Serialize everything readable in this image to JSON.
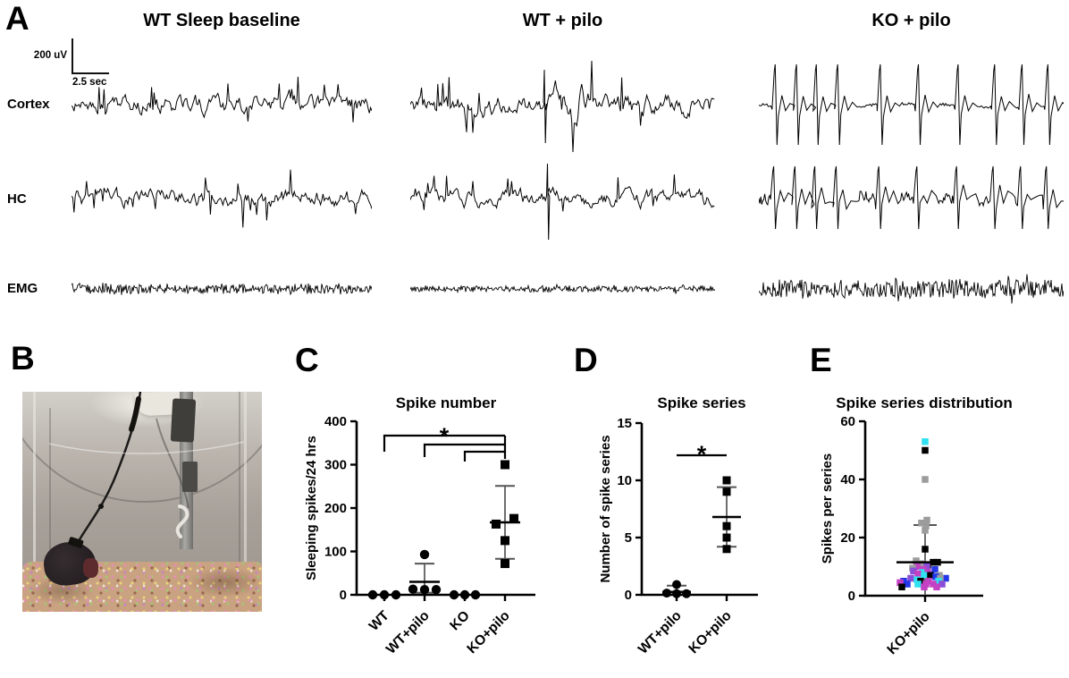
{
  "figure": {
    "panels": {
      "A": {
        "label": "A",
        "column_titles": [
          "WT Sleep baseline",
          "WT + pilo",
          "KO + pilo"
        ],
        "row_labels": [
          "Cortex",
          "HC",
          "EMG"
        ],
        "scalebar": {
          "voltage": "200 uV",
          "time": "2.5 sec"
        },
        "traces": [
          {
            "name": "wt-baseline-cortex",
            "row": 0,
            "col": 0,
            "kind": "eeg",
            "amp": 13,
            "spike_prob": 0.05,
            "seed": 11
          },
          {
            "name": "wt-pilo-cortex",
            "row": 0,
            "col": 1,
            "kind": "eeg",
            "amp": 15,
            "spike_prob": 0.06,
            "seed": 21,
            "event": {
              "pos": 0.44,
              "up": 40,
              "down": 42
            },
            "burst": {
              "from": 0.46,
              "to": 0.6,
              "gain": 1.8
            }
          },
          {
            "name": "ko-pilo-cortex",
            "row": 0,
            "col": 2,
            "kind": "swd",
            "noise": 1.6,
            "up": 46,
            "down": 44,
            "events": [
              0.055,
              0.125,
              0.19,
              0.26,
              0.4,
              0.525,
              0.655,
              0.775,
              0.865,
              0.95
            ],
            "seed": 31
          },
          {
            "name": "wt-baseline-hc",
            "row": 1,
            "col": 0,
            "kind": "eeg",
            "amp": 12,
            "spike_prob": 0.07,
            "seed": 12
          },
          {
            "name": "wt-pilo-hc",
            "row": 1,
            "col": 1,
            "kind": "eeg",
            "amp": 11,
            "spike_prob": 0.05,
            "seed": 22,
            "event": {
              "pos": 0.45,
              "up": 39,
              "down": 46
            }
          },
          {
            "name": "ko-pilo-hc",
            "row": 1,
            "col": 2,
            "kind": "swd",
            "noise": 7,
            "up": 36,
            "down": 34,
            "events": [
              0.05,
              0.12,
              0.185,
              0.255,
              0.395,
              0.52,
              0.65,
              0.77,
              0.86,
              0.945
            ],
            "seed": 32
          },
          {
            "name": "wt-baseline-emg",
            "row": 2,
            "col": 0,
            "kind": "emg",
            "amp": 5,
            "seed": 13
          },
          {
            "name": "wt-pilo-emg",
            "row": 2,
            "col": 1,
            "kind": "emg",
            "amp": 3,
            "seed": 23
          },
          {
            "name": "ko-pilo-emg",
            "row": 2,
            "col": 2,
            "kind": "emg",
            "amp": 9,
            "seed": 33
          }
        ]
      },
      "B": {
        "label": "B",
        "photo_alt": "Mouse with EEG tether in recording chamber on multicolored bedding"
      },
      "C": {
        "label": "C"
      },
      "D": {
        "label": "D"
      },
      "E": {
        "label": "E"
      }
    }
  },
  "chart_data": [
    {
      "type": "scatter",
      "panel": "C",
      "title": "Spike number",
      "xlabel": "",
      "ylabel": "Sleeping spikes/24 hrs",
      "ylim": [
        0,
        400
      ],
      "yticks": [
        0,
        100,
        200,
        300,
        400
      ],
      "grid": false,
      "categories": [
        "WT",
        "WT+pilo",
        "KO",
        "KO+pilo"
      ],
      "series": [
        {
          "category": "WT",
          "marker": "circle",
          "points": [
            {
              "v": 0,
              "j": -13
            },
            {
              "v": 0,
              "j": 0
            },
            {
              "v": 0,
              "j": 13
            }
          ],
          "mean": null,
          "sd_low": null,
          "sd_high": null
        },
        {
          "category": "WT+pilo",
          "marker": "circle",
          "points": [
            {
              "v": 93,
              "j": 0
            },
            {
              "v": 13,
              "j": -13
            },
            {
              "v": 12,
              "j": 0
            },
            {
              "v": 12,
              "j": 13
            }
          ],
          "mean": 30,
          "sd_low": 5,
          "sd_high": 72
        },
        {
          "category": "KO",
          "marker": "circle",
          "points": [
            {
              "v": 0,
              "j": -12
            },
            {
              "v": 0,
              "j": 0
            },
            {
              "v": 0,
              "j": 12
            }
          ],
          "mean": null,
          "sd_low": null,
          "sd_high": null
        },
        {
          "category": "KO+pilo",
          "marker": "square",
          "points": [
            {
              "v": 300,
              "j": 0
            },
            {
              "v": 176,
              "j": 10
            },
            {
              "v": 163,
              "j": -10
            },
            {
              "v": 125,
              "j": 0
            },
            {
              "v": 72,
              "j": 0
            }
          ],
          "mean": 167,
          "sd_low": 83,
          "sd_high": 251
        }
      ],
      "significance": {
        "label": "*",
        "comparisons": [
          {
            "from": "WT",
            "to": "KO+pilo"
          },
          {
            "from": "WT+pilo",
            "to": "KO+pilo"
          },
          {
            "from": "KO",
            "to": "KO+pilo"
          }
        ]
      }
    },
    {
      "type": "scatter",
      "panel": "D",
      "title": "Spike series",
      "xlabel": "",
      "ylabel": "Number of spike series",
      "ylim": [
        0,
        15
      ],
      "yticks": [
        0,
        5,
        10,
        15
      ],
      "grid": false,
      "categories": [
        "WT+pilo",
        "KO+pilo"
      ],
      "series": [
        {
          "category": "WT+pilo",
          "marker": "circle",
          "points": [
            {
              "v": 0.9,
              "j": 0
            },
            {
              "v": 0.15,
              "j": -11
            },
            {
              "v": 0.1,
              "j": 0
            },
            {
              "v": 0.1,
              "j": 11
            }
          ],
          "mean": 0.25,
          "sd_low": 0,
          "sd_high": 0.8
        },
        {
          "category": "KO+pilo",
          "marker": "square",
          "points": [
            {
              "v": 10,
              "j": 0
            },
            {
              "v": 9,
              "j": 0
            },
            {
              "v": 6,
              "j": 0
            },
            {
              "v": 5,
              "j": 0
            },
            {
              "v": 4,
              "j": 0
            }
          ],
          "mean": 6.8,
          "sd_low": 4.2,
          "sd_high": 9.4
        }
      ],
      "significance": {
        "label": "*",
        "comparisons": [
          {
            "from": "WT+pilo",
            "to": "KO+pilo"
          }
        ]
      }
    },
    {
      "type": "scatter",
      "panel": "E",
      "title": "Spike series distribution",
      "xlabel": "",
      "ylabel": "Spikes per series",
      "ylim": [
        0,
        60
      ],
      "yticks": [
        0,
        20,
        40,
        60
      ],
      "grid": false,
      "categories": [
        "KO+pilo"
      ],
      "palette": {
        "black": "#000000",
        "gray": "#9c9c9c",
        "magenta": "#c341c3",
        "purple": "#8a4fd8",
        "cyan": "#2fe1f1",
        "blue": "#2337e8"
      },
      "series": [
        {
          "category": "KO+pilo",
          "marker": "square",
          "colored": true,
          "points": [
            {
              "v": 53,
              "c": "cyan",
              "j": 0
            },
            {
              "v": 50,
              "c": "black",
              "j": 0
            },
            {
              "v": 40,
              "c": "gray",
              "j": 0
            },
            {
              "v": 26,
              "c": "gray",
              "j": 2
            },
            {
              "v": 25,
              "c": "gray",
              "j": -4
            },
            {
              "v": 24,
              "c": "gray",
              "j": 1
            },
            {
              "v": 22.5,
              "c": "gray",
              "j": 0
            },
            {
              "v": 16,
              "c": "black",
              "j": 0
            },
            {
              "v": 12,
              "c": "gray",
              "j": -10
            },
            {
              "v": 11.5,
              "c": "black",
              "j": 9
            },
            {
              "v": 11.5,
              "c": "black",
              "j": 14
            },
            {
              "v": 11,
              "c": "gray",
              "j": -4
            },
            {
              "v": 10.5,
              "c": "black",
              "j": 3
            },
            {
              "v": 10,
              "c": "magenta",
              "j": -9
            },
            {
              "v": 10,
              "c": "purple",
              "j": 2
            },
            {
              "v": 9.5,
              "c": "gray",
              "j": -14
            },
            {
              "v": 9,
              "c": "magenta",
              "j": -2
            },
            {
              "v": 9,
              "c": "blue",
              "j": 11
            },
            {
              "v": 8.5,
              "c": "purple",
              "j": -13
            },
            {
              "v": 8,
              "c": "cyan",
              "j": -3
            },
            {
              "v": 8,
              "c": "magenta",
              "j": 3
            },
            {
              "v": 7.5,
              "c": "magenta",
              "j": -8
            },
            {
              "v": 7,
              "c": "cyan",
              "j": -1
            },
            {
              "v": 7,
              "c": "black",
              "j": 6
            },
            {
              "v": 7,
              "c": "gray",
              "j": 16
            },
            {
              "v": 6.5,
              "c": "blue",
              "j": 12
            },
            {
              "v": 6,
              "c": "purple",
              "j": -16
            },
            {
              "v": 6,
              "c": "blue",
              "j": 23
            },
            {
              "v": 6,
              "c": "gray",
              "j": 17
            },
            {
              "v": 5.5,
              "c": "cyan",
              "j": -9
            },
            {
              "v": 5,
              "c": "blue",
              "j": -24
            },
            {
              "v": 5,
              "c": "black",
              "j": -5
            },
            {
              "v": 5,
              "c": "magenta",
              "j": 4
            },
            {
              "v": 5,
              "c": "cyan",
              "j": 15
            },
            {
              "v": 4.5,
              "c": "magenta",
              "j": -28
            },
            {
              "v": 4,
              "c": "blue",
              "j": -20
            },
            {
              "v": 4,
              "c": "cyan",
              "j": -8
            },
            {
              "v": 4,
              "c": "magenta",
              "j": 1
            },
            {
              "v": 4,
              "c": "magenta",
              "j": 9
            },
            {
              "v": 4,
              "c": "purple",
              "j": 19
            },
            {
              "v": 3,
              "c": "black",
              "j": -26
            },
            {
              "v": 3,
              "c": "magenta",
              "j": -1
            },
            {
              "v": 3,
              "c": "magenta",
              "j": 13
            }
          ],
          "mean": 11.5,
          "sd_low": -1.3,
          "sd_high": 24.3
        }
      ],
      "significance": null
    }
  ]
}
